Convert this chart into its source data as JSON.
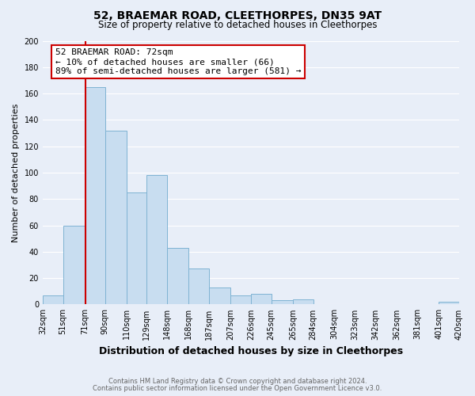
{
  "title": "52, BRAEMAR ROAD, CLEETHORPES, DN35 9AT",
  "subtitle": "Size of property relative to detached houses in Cleethorpes",
  "xlabel": "Distribution of detached houses by size in Cleethorpes",
  "ylabel": "Number of detached properties",
  "bar_left_edges": [
    32,
    51,
    71,
    90,
    110,
    129,
    148,
    168,
    187,
    207,
    226,
    245,
    265,
    284,
    304,
    323,
    342,
    362,
    381,
    401
  ],
  "bar_heights": [
    7,
    60,
    165,
    132,
    85,
    98,
    43,
    27,
    13,
    7,
    8,
    3,
    4,
    0,
    0,
    0,
    0,
    0,
    0,
    2
  ],
  "bar_color": "#c8ddf0",
  "bar_edge_color": "#7fb3d3",
  "property_line_x": 72,
  "annotation_line1": "52 BRAEMAR ROAD: 72sqm",
  "annotation_line2": "← 10% of detached houses are smaller (66)",
  "annotation_line3": "89% of semi-detached houses are larger (581) →",
  "annotation_box_color": "#ffffff",
  "annotation_box_edge_color": "#cc0000",
  "property_line_color": "#cc0000",
  "ylim": [
    0,
    200
  ],
  "yticks": [
    0,
    20,
    40,
    60,
    80,
    100,
    120,
    140,
    160,
    180,
    200
  ],
  "xtick_labels": [
    "32sqm",
    "51sqm",
    "71sqm",
    "90sqm",
    "110sqm",
    "129sqm",
    "148sqm",
    "168sqm",
    "187sqm",
    "207sqm",
    "226sqm",
    "245sqm",
    "265sqm",
    "284sqm",
    "304sqm",
    "323sqm",
    "342sqm",
    "362sqm",
    "381sqm",
    "401sqm",
    "420sqm"
  ],
  "footer1": "Contains HM Land Registry data © Crown copyright and database right 2024.",
  "footer2": "Contains public sector information licensed under the Open Government Licence v3.0.",
  "background_color": "#e8eef8",
  "grid_color": "#ffffff",
  "title_fontsize": 10,
  "subtitle_fontsize": 8.5,
  "xlabel_fontsize": 9,
  "ylabel_fontsize": 8,
  "tick_fontsize": 7,
  "footer_fontsize": 6,
  "annot_fontsize": 8
}
